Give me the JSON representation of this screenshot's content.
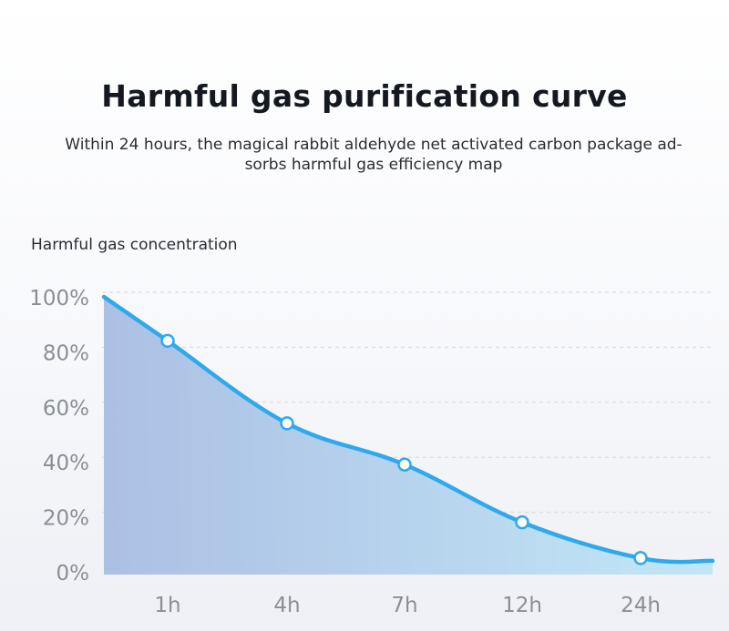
{
  "header": {
    "title": "Harmful gas purification curve",
    "subtitle": "Within 24 hours, the magical rabbit aldehyde net activated carbon package ad-sorbs harmful gas efficiency map"
  },
  "chart_data": {
    "type": "area",
    "title": "Harmful gas purification curve",
    "ylabel": "Harmful gas concentration",
    "xlabel": "",
    "categories": [
      "1h",
      "4h",
      "7h",
      "12h",
      "24h"
    ],
    "y_ticks": [
      "100%",
      "80%",
      "60%",
      "40%",
      "20%",
      "0%"
    ],
    "ylim": [
      0,
      100
    ],
    "series": [
      {
        "values": [
          84,
          54,
          39,
          18,
          5
        ]
      }
    ],
    "start_value": 100,
    "end_value": 4,
    "grid": true,
    "colors": {
      "line": "#2fa9ec",
      "fill_left": "#a8bde3",
      "fill_right": "#bfe6f6",
      "grid": "#d4d7dd",
      "tick_text": "#8a8e96",
      "marker_fill": "#ffffff"
    }
  }
}
